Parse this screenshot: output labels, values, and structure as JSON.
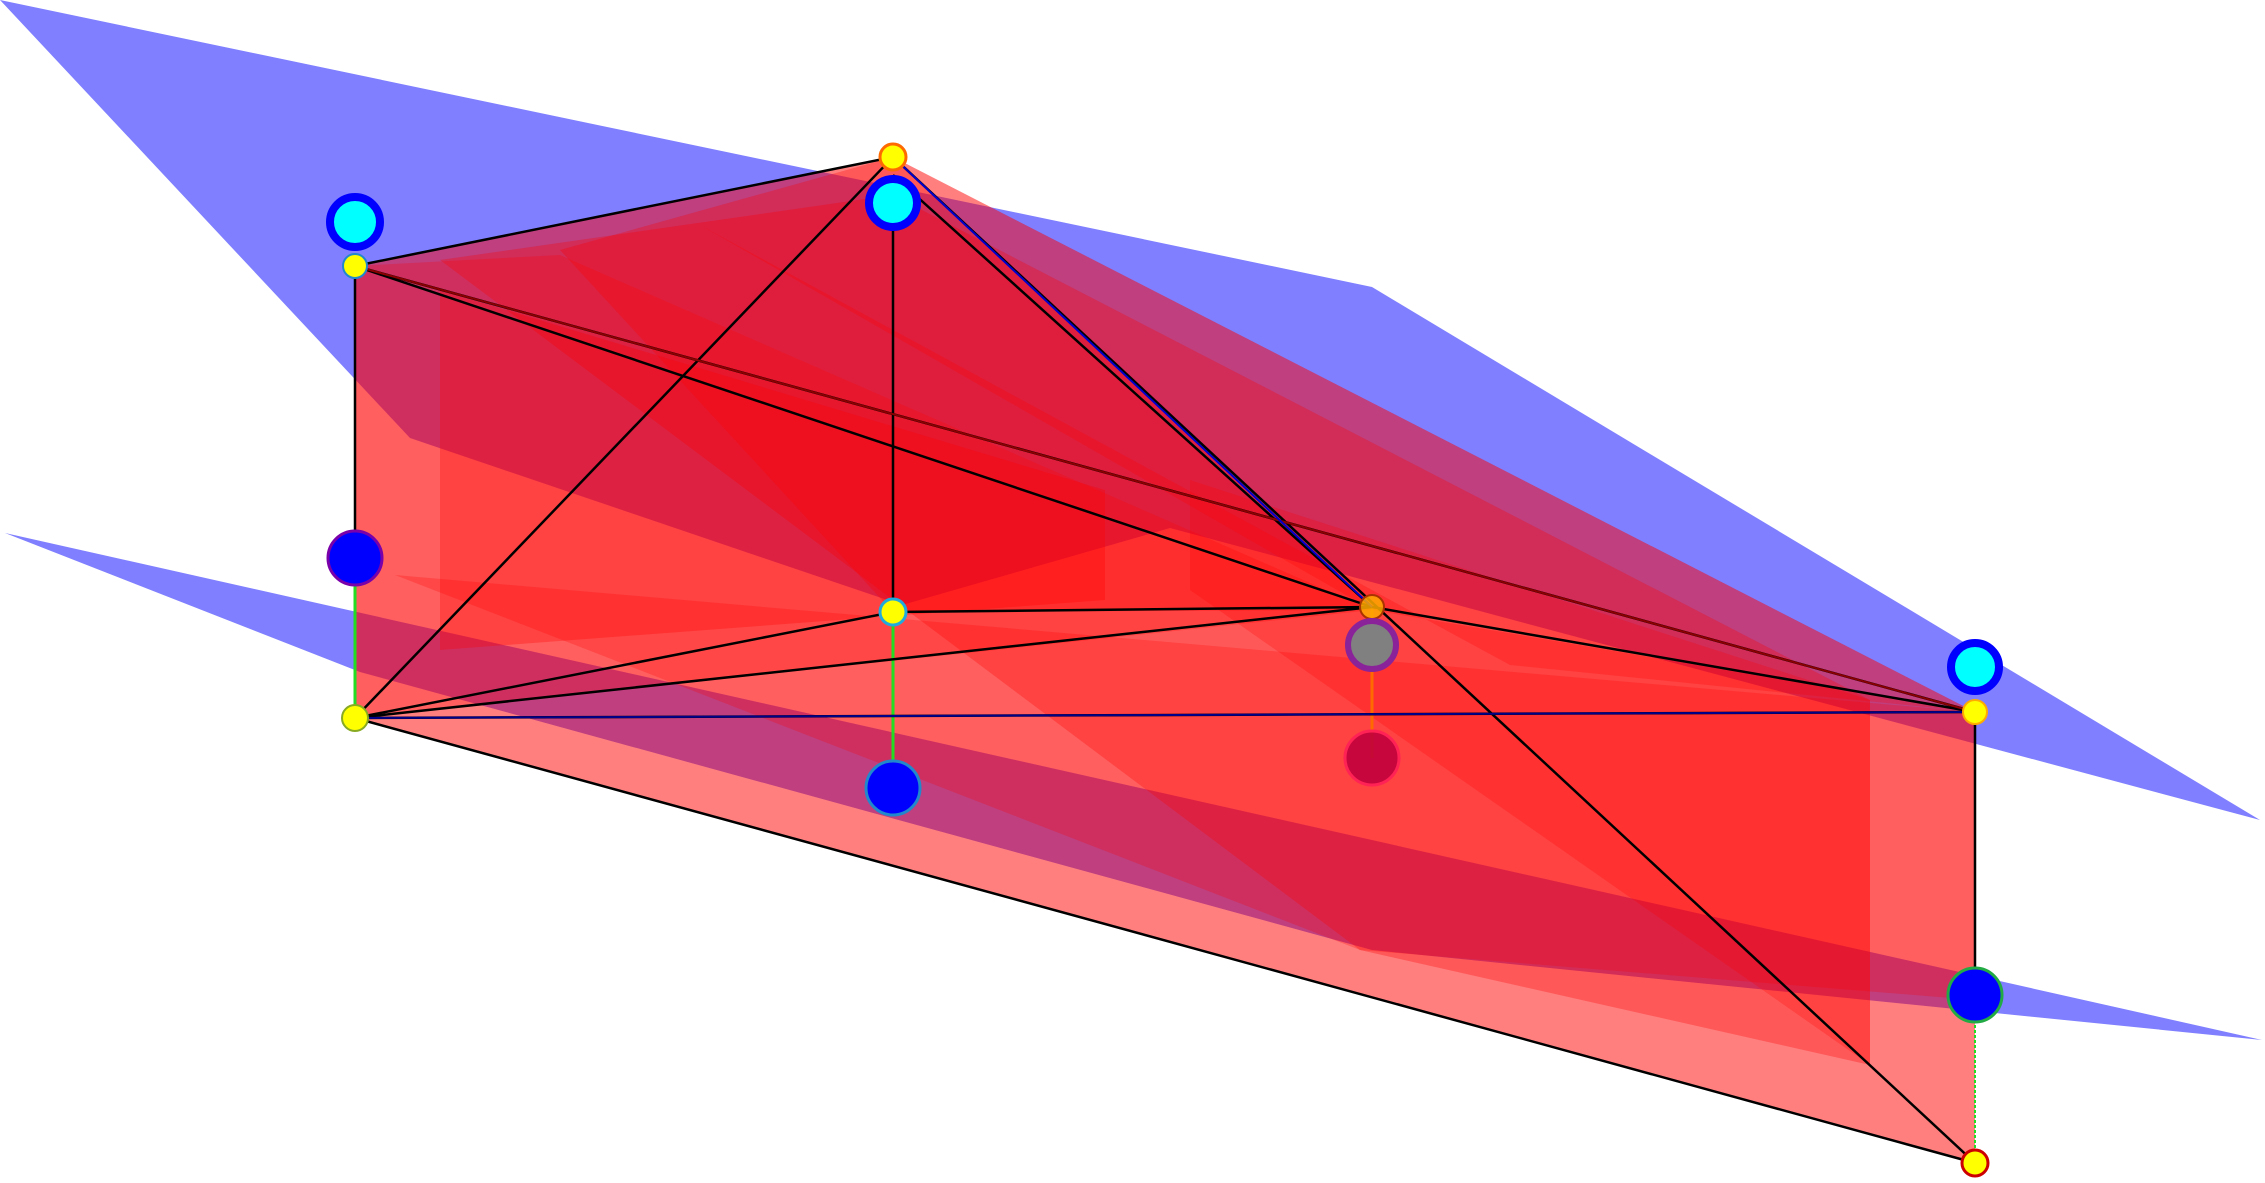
{
  "figure": {
    "type": "3d-geometry-render",
    "colors": {
      "background": "#ffffff",
      "blue_plane": "#0000ff",
      "red_surface": "#ff0000",
      "edge": "#000000",
      "vertex_small": "#ffff00",
      "vertex_large": "#0000ff",
      "vertex_cyan": "#00ffff",
      "vertex_hidden": "#c0003c",
      "vertex_gray": "#808080",
      "link_green": "#22dd22",
      "link_orange": "#ff6a00"
    },
    "planes": [
      {
        "name": "upper-blue-plane",
        "color": "#0000ff"
      },
      {
        "name": "lower-blue-plane",
        "color": "#0000ff"
      }
    ],
    "red_faces": [
      {
        "name": "front-face"
      },
      {
        "name": "inner-vertical-face"
      },
      {
        "name": "back-face"
      },
      {
        "name": "right-vertical-face"
      },
      {
        "name": "left-vertical-face"
      },
      {
        "name": "diagonal-face-a"
      },
      {
        "name": "diagonal-face-b"
      },
      {
        "name": "diagonal-face-c"
      }
    ],
    "edges": [
      {
        "name": "top-edge-left"
      },
      {
        "name": "top-edge-right"
      },
      {
        "name": "left-vertical-edge"
      },
      {
        "name": "apex-vertical-edge"
      },
      {
        "name": "right-vertical-edge"
      },
      {
        "name": "base-front-edge"
      },
      {
        "name": "base-back-edge-left"
      },
      {
        "name": "base-back-edge-right"
      },
      {
        "name": "long-diagonal-apex-to-bottom"
      },
      {
        "name": "apex-to-base-left"
      },
      {
        "name": "top-left-to-right-top"
      },
      {
        "name": "top-left-to-right-top-b"
      },
      {
        "name": "top-left-to-center"
      },
      {
        "name": "center-to-right"
      },
      {
        "name": "bottom-left-to-center"
      },
      {
        "name": "bottom-left-to-mid"
      },
      {
        "name": "mid-to-center"
      },
      {
        "name": "bottom-left-to-right-top"
      }
    ],
    "vertices": [
      {
        "name": "apex-top-vertex",
        "kind": "small"
      },
      {
        "name": "apex-cyan-vertex",
        "kind": "cyan"
      },
      {
        "name": "left-cyan-vertex",
        "kind": "cyan"
      },
      {
        "name": "left-top-vertex",
        "kind": "small"
      },
      {
        "name": "left-blue-vertex",
        "kind": "large"
      },
      {
        "name": "left-bottom-vertex",
        "kind": "small"
      },
      {
        "name": "mid-vertex",
        "kind": "small"
      },
      {
        "name": "mid-blue-vertex",
        "kind": "large"
      },
      {
        "name": "center-vertex",
        "kind": "small"
      },
      {
        "name": "center-gray-vertex",
        "kind": "gray"
      },
      {
        "name": "center-hidden-vertex",
        "kind": "hidden"
      },
      {
        "name": "right-cyan-vertex",
        "kind": "cyan"
      },
      {
        "name": "right-top-vertex",
        "kind": "small"
      },
      {
        "name": "right-blue-vertex",
        "kind": "large"
      },
      {
        "name": "right-bottom-vertex",
        "kind": "small"
      }
    ]
  }
}
